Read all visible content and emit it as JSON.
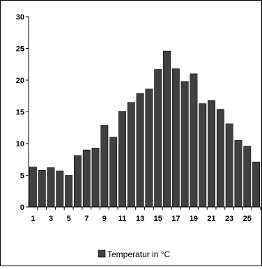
{
  "chart_data": {
    "type": "bar",
    "categories": [
      "1",
      "2",
      "3",
      "4",
      "5",
      "6",
      "7",
      "8",
      "9",
      "10",
      "11",
      "12",
      "13",
      "14",
      "15",
      "16",
      "17",
      "18",
      "19",
      "20",
      "21",
      "22",
      "23",
      "24",
      "25",
      "26"
    ],
    "x_tick_labels": [
      "1",
      "3",
      "5",
      "7",
      "9",
      "11",
      "13",
      "15",
      "17",
      "19",
      "21",
      "23",
      "25"
    ],
    "y_tick_labels": [
      "0",
      "5",
      "10",
      "15",
      "20",
      "25",
      "30"
    ],
    "series": [
      {
        "name": "Temperatur in °C",
        "values": [
          6.3,
          5.8,
          6.2,
          5.7,
          5.0,
          8.1,
          9.0,
          9.3,
          12.9,
          11.0,
          15.1,
          16.5,
          17.9,
          18.6,
          21.7,
          24.6,
          21.8,
          19.8,
          21.0,
          16.3,
          16.8,
          15.4,
          13.1,
          10.5,
          9.6,
          7.1
        ],
        "color": "#404040"
      }
    ],
    "ylim": [
      0,
      30
    ],
    "y_step": 5,
    "grid": false,
    "legend_position": "bottom",
    "title": "",
    "xlabel": "",
    "ylabel": ""
  }
}
